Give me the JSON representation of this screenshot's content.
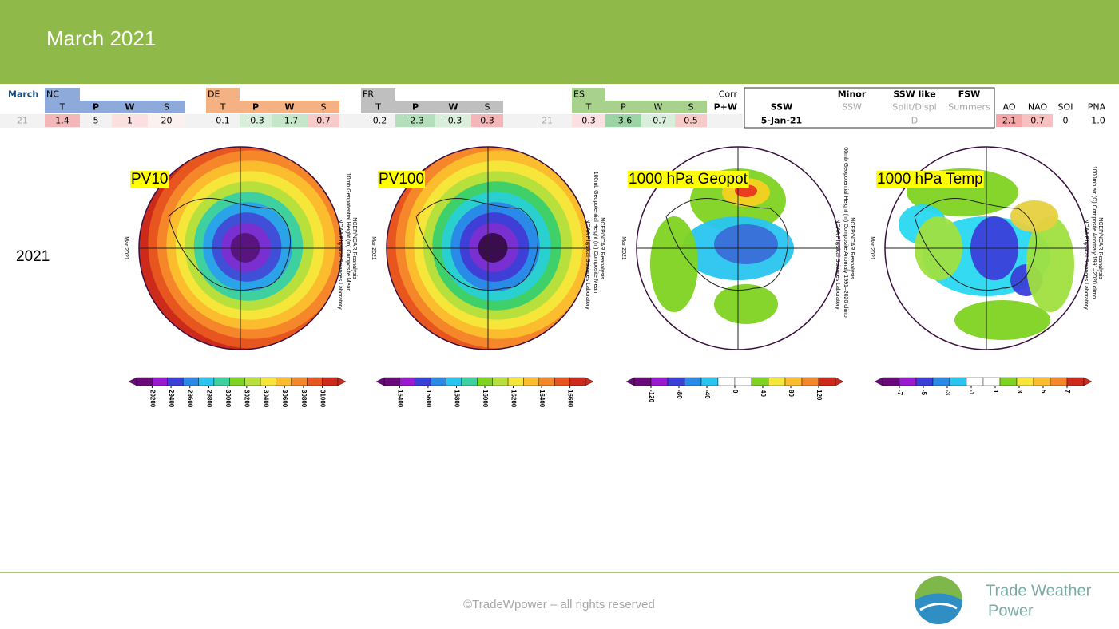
{
  "header": {
    "title": "March 2021"
  },
  "table": {
    "row1": [
      "March",
      "NC",
      "DE",
      "FR",
      "ES",
      "Corr",
      "Minor",
      "SSW like",
      "FSW"
    ],
    "row2": [
      "T",
      "P",
      "W",
      "S",
      "T",
      "P",
      "W",
      "S",
      "T",
      "P",
      "W",
      "S",
      "T",
      "P",
      "W",
      "S",
      "P+W",
      "SSW",
      "SSW",
      "Split/Displ",
      "Summers",
      "AO",
      "NAO",
      "SOI",
      "PNA"
    ],
    "row3": [
      "21",
      "1.4",
      "5",
      "1",
      "20",
      "0.1",
      "-0.3",
      "-1.7",
      "0.7",
      "-0.2",
      "-2.3",
      "-0.3",
      "0.3",
      "21",
      "0.3",
      "-3.6",
      "-0.7",
      "0.5",
      "5-Jan-21",
      "D",
      "2.1",
      "0.7",
      "0",
      "-1.0"
    ]
  },
  "year_label": "2021",
  "maps": [
    {
      "label": "PV10",
      "side_text": "Mar 2021",
      "captions": [
        "10mb Geopotential Height (m) Composite Mean",
        "NCEP/NCAR Reanalysis",
        "NOAA Physical Sciences Laboratory"
      ],
      "colorbar_ticks": [
        29200,
        29400,
        29600,
        29800,
        30000,
        30200,
        30400,
        30600,
        30800,
        31000
      ]
    },
    {
      "label": "PV100",
      "side_text": "Mar 2021",
      "captions": [
        "100mb Geopotential Height (m) Composite Mean",
        "NCEP/NCAR Reanalysis",
        "NOAA Physical Sciences Laboratory"
      ],
      "colorbar_ticks": [
        15400,
        15600,
        15800,
        16000,
        16200,
        16400,
        16600
      ]
    },
    {
      "label": "1000 hPa Geopot",
      "side_text": "Mar 2021",
      "captions": [
        "00mb Geopotential Height (m) Composite Anomaly 1991–2020 climo",
        "NCEP/NCAR Reanalysis",
        "NOAA Physical Sciences Laboratory"
      ],
      "colorbar_ticks": [
        -120,
        -80,
        -40,
        0,
        40,
        80,
        120
      ]
    },
    {
      "label": "1000 hPa Temp",
      "side_text": "Mar 2021",
      "captions": [
        "1000mb air (C) Composite Anomaly 1991–2020 climo",
        "NCEP/NCAR Reanalysis",
        "NOAA Physical Sciences Laboratory"
      ],
      "colorbar_ticks": [
        -7,
        -5,
        -3,
        -1,
        1,
        3,
        5,
        7
      ]
    }
  ],
  "footer": {
    "copyright": "©TradeWpower – all rights reserved",
    "logo_line1": "Trade Weather",
    "logo_line2": "Power"
  }
}
